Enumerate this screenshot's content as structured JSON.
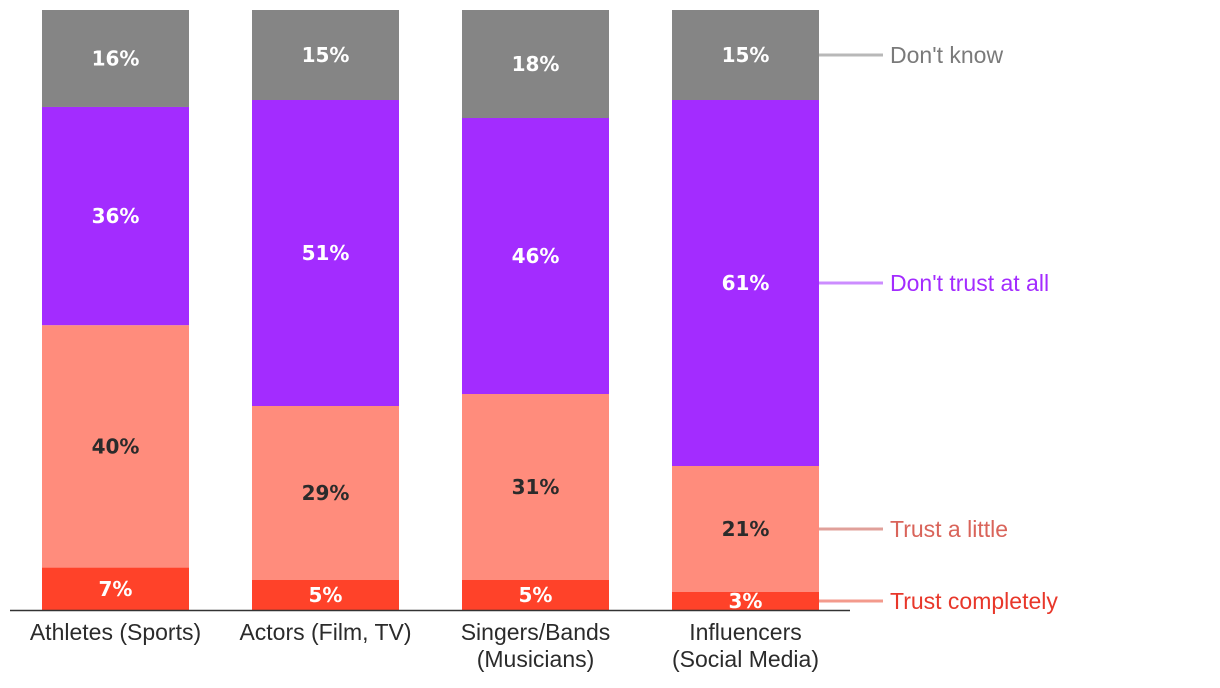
{
  "chart_data": {
    "type": "bar",
    "stacked": true,
    "categories": [
      [
        "Athletes (Sports)"
      ],
      [
        "Actors (Film, TV)"
      ],
      [
        "Singers/Bands",
        "(Musicians)"
      ],
      [
        "Influencers",
        "(Social Media)"
      ]
    ],
    "series": [
      {
        "name": "Trust completely",
        "values": [
          7,
          5,
          5,
          3
        ],
        "labels": [
          "7%",
          "5%",
          "5%",
          "3%"
        ],
        "color": "#ff4229",
        "text_color": "#ffffff",
        "legend_color": "#e8372a",
        "line_color": "#f39a8c"
      },
      {
        "name": "Trust a little",
        "values": [
          40,
          29,
          31,
          21
        ],
        "labels": [
          "40%",
          "29%",
          "31%",
          "21%"
        ],
        "color": "#ff8c7c",
        "text_color": "#2b2b2b",
        "legend_color": "#d9645a",
        "line_color": "#e0a09a"
      },
      {
        "name": "Don't trust at all",
        "values": [
          36,
          51,
          46,
          61
        ],
        "labels": [
          "36%",
          "51%",
          "46%",
          "61%"
        ],
        "color": "#a32cff",
        "text_color": "#ffffff",
        "legend_color": "#a32cff",
        "line_color": "#cc8cff"
      },
      {
        "name": "Don't know",
        "values": [
          16,
          15,
          18,
          15
        ],
        "labels": [
          "16%",
          "15%",
          "18%",
          "15%"
        ],
        "color": "#858585",
        "text_color": "#ffffff",
        "legend_color": "#7a7a7a",
        "line_color": "#b8b8b8"
      }
    ],
    "legend_position": "right",
    "title": "",
    "xlabel": "",
    "ylabel": "",
    "grid": false
  }
}
